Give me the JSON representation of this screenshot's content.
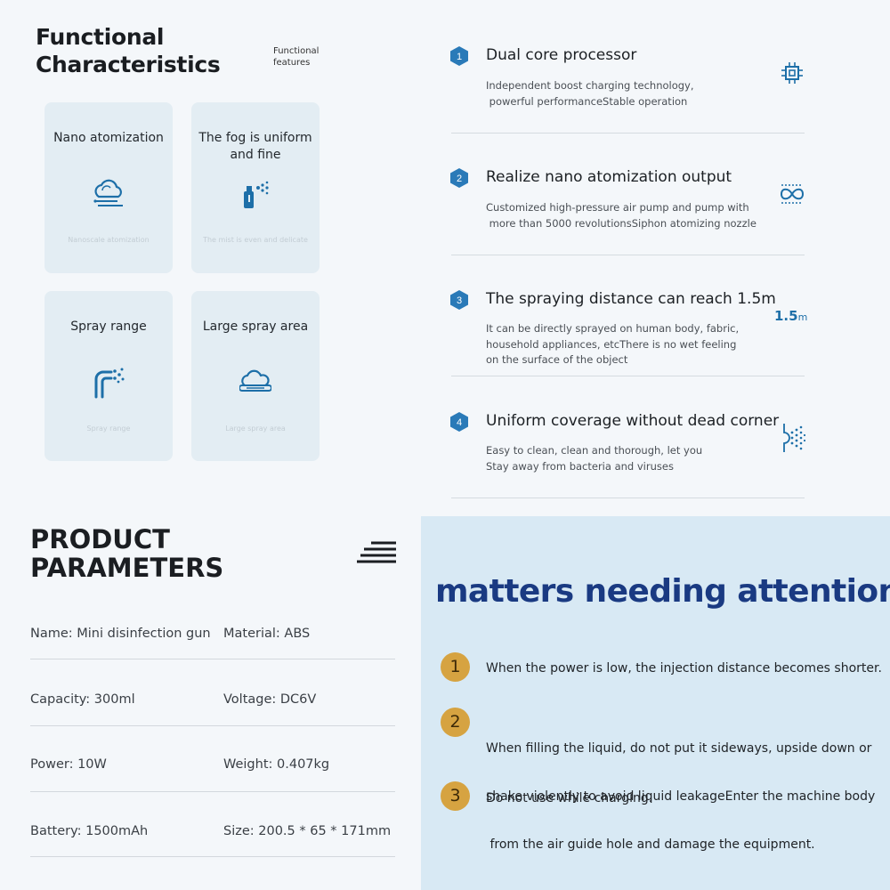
{
  "functional": {
    "title_line1": "Functional",
    "title_line2": "Characteristics",
    "subtitle_line1": "Functional",
    "subtitle_line2": "features",
    "cards": [
      {
        "title": "Nano atomization",
        "caption": "Nanoscale atomization",
        "icon": "cloud-wind-icon"
      },
      {
        "title": "The fog is uniform and fine",
        "caption": "The mist is even and delicate",
        "icon": "spray-bottle-icon"
      },
      {
        "title": "Spray range",
        "caption": "Spray range",
        "icon": "spray-pipe-icon"
      },
      {
        "title": "Large spray area",
        "caption": "Large spray area",
        "icon": "cloud-area-icon"
      }
    ]
  },
  "features": [
    {
      "number": "1",
      "title": "Dual core processor",
      "desc_lines": [
        "Independent boost charging technology,",
        " powerful performanceStable operation"
      ],
      "icon": "chip-icon"
    },
    {
      "number": "2",
      "title": "Realize nano atomization output",
      "desc_lines": [
        "Customized high-pressure air pump and pump with",
        " more than 5000 revolutionsSiphon atomizing nozzle"
      ],
      "icon": "infinity-icon"
    },
    {
      "number": "3",
      "title": "The spraying distance can reach 1.5m",
      "desc_lines": [
        "It can be directly sprayed on human body, fabric,",
        "household appliances, etcThere is no wet feeling",
        "on the surface of the object"
      ],
      "icon": "distance-label",
      "icon_value": "1.5",
      "icon_unit": "m"
    },
    {
      "number": "4",
      "title": "Uniform coverage without dead corner",
      "desc_lines": [
        "Easy to clean, clean and thorough, let you",
        "Stay away from bacteria and viruses"
      ],
      "icon": "spray-dots-icon"
    }
  ],
  "parameters": {
    "title_line1": "PRODUCT",
    "title_line2": "PARAMETERS",
    "rows": [
      {
        "left": "Name: Mini disinfection gun",
        "right": "Material: ABS"
      },
      {
        "left": "Capacity: 300ml",
        "right": "Voltage: DC6V"
      },
      {
        "left": "Power: 10W",
        "right": "Weight: 0.407kg"
      },
      {
        "left": "Battery: 1500mAh",
        "right": "Size: 200.5 * 65 * 171mm"
      }
    ]
  },
  "attention": {
    "title": "matters needing attention",
    "items": [
      {
        "number": "1",
        "lines": [
          "When the power is low, the injection distance becomes shorter."
        ]
      },
      {
        "number": "2",
        "lines": [
          "When filling the liquid, do not put it sideways, upside down or",
          "shake violently to avoid liquid leakageEnter the machine body",
          " from the air guide hole and damage the equipment."
        ]
      },
      {
        "number": "3",
        "lines": [
          "Do not use while charging."
        ]
      }
    ]
  },
  "colors": {
    "accent_blue": "#1d6fa8",
    "badge_blue": "#2a7ab8",
    "panel_bg": "#d8e9f4",
    "title_navy": "#1a3a82",
    "gold": "#d6a341"
  }
}
